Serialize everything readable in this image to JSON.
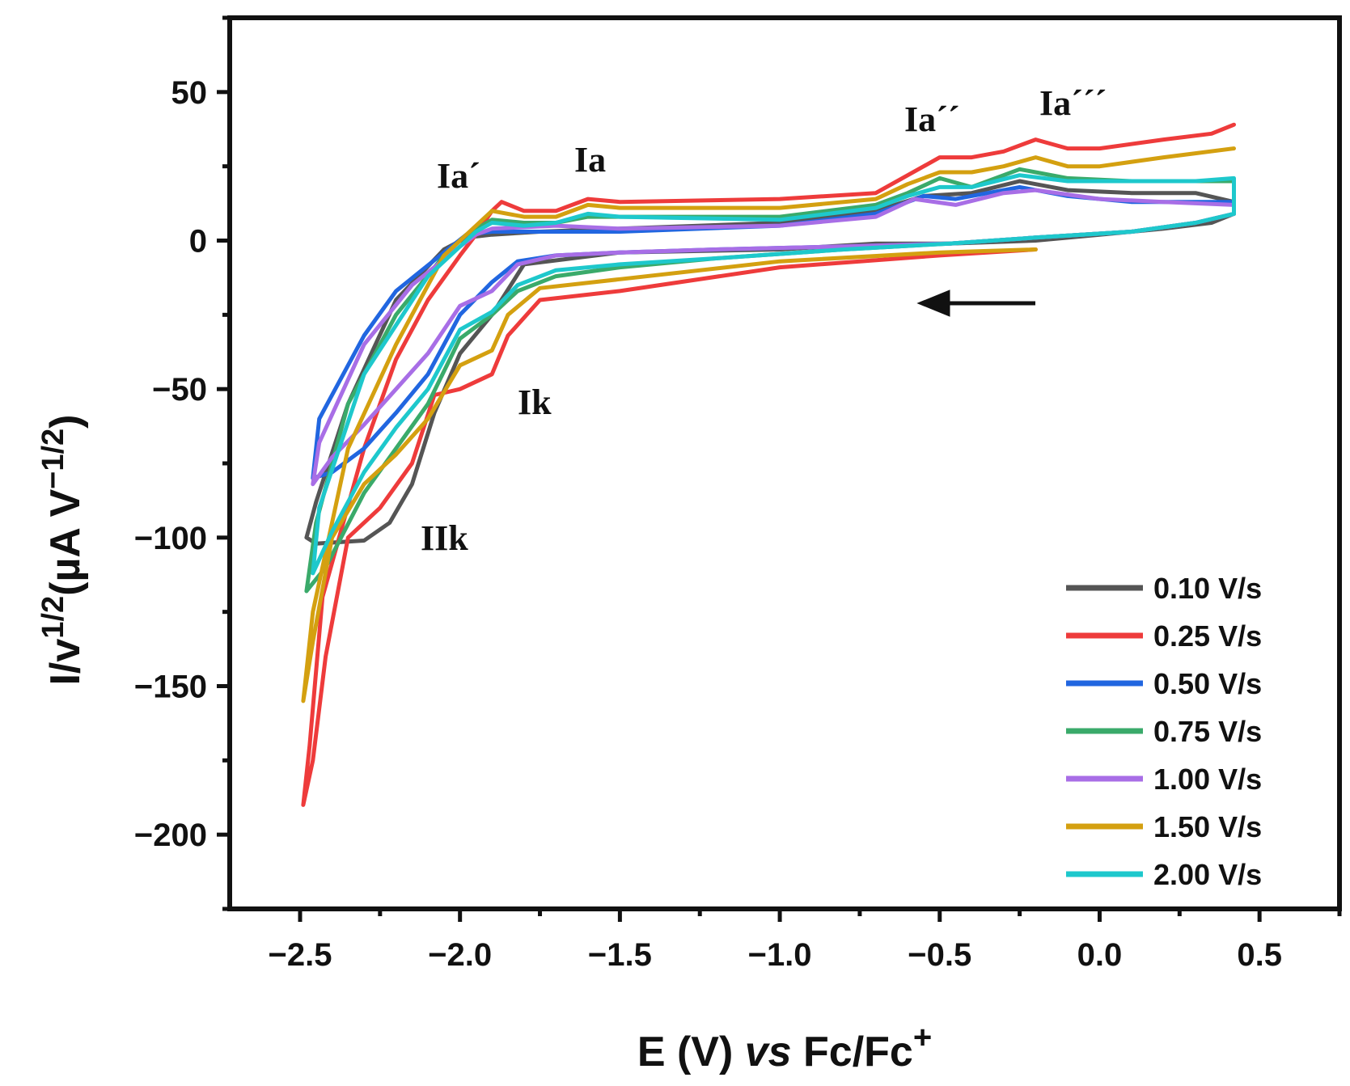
{
  "chart_data": {
    "type": "line",
    "title": "",
    "xlabel": "E (V) vs Fc/Fc+",
    "xlabel_parts": {
      "pre": "E (V) ",
      "italic": "vs",
      "post": " Fc/Fc",
      "sup": "+"
    },
    "ylabel": "I/v^1/2 (µA V^-1/2)",
    "ylabel_parts": {
      "base": "I/v",
      "sup1": "1/2",
      "mid": "(µA V",
      "sup2": "−1/2",
      "end": ")"
    },
    "xlim": [
      -2.72,
      0.75
    ],
    "ylim": [
      -225,
      75
    ],
    "xticks": [
      -2.5,
      -2.0,
      -1.5,
      -1.0,
      -0.5,
      0.0,
      0.5
    ],
    "xtick_labels": [
      "−2.5",
      "−2.0",
      "−1.5",
      "−1.0",
      "−0.5",
      "0.0",
      "0.5"
    ],
    "yticks": [
      50,
      0,
      -50,
      -100,
      -150,
      -200
    ],
    "ytick_labels": [
      "50",
      "0",
      "−50",
      "−100",
      "−150",
      "−200"
    ],
    "grid": false,
    "legend_position": "bottom-right",
    "annotations": [
      {
        "text": "Ia´",
        "x": -2.0,
        "y": 18
      },
      {
        "text": "Ia",
        "x": -1.62,
        "y": 23
      },
      {
        "text": "Ia´´",
        "x": -0.55,
        "y": 37
      },
      {
        "text": "Ia´´´",
        "x": -0.2,
        "y": 42
      },
      {
        "text": "Ik",
        "x": -1.71,
        "y": -58
      },
      {
        "text": "IIk",
        "x": -2.08,
        "y": -103
      }
    ],
    "scan_direction": "negative (arrow pointing left)",
    "series": [
      {
        "name": "0.10 V/s",
        "color": "#555555",
        "points": [
          [
            -0.47,
            -1
          ],
          [
            -0.2,
            0
          ],
          [
            0.0,
            2
          ],
          [
            0.2,
            4
          ],
          [
            0.35,
            6
          ],
          [
            0.42,
            9
          ],
          [
            0.42,
            13
          ],
          [
            0.3,
            16
          ],
          [
            0.1,
            16
          ],
          [
            -0.1,
            17
          ],
          [
            -0.25,
            20
          ],
          [
            -0.4,
            16
          ],
          [
            -0.55,
            15
          ],
          [
            -0.7,
            10
          ],
          [
            -1.0,
            6
          ],
          [
            -1.5,
            4
          ],
          [
            -1.75,
            3
          ],
          [
            -1.9,
            2
          ],
          [
            -1.98,
            1
          ],
          [
            -2.05,
            -3
          ],
          [
            -2.2,
            -20
          ],
          [
            -2.35,
            -55
          ],
          [
            -2.45,
            -88
          ],
          [
            -2.48,
            -100
          ],
          [
            -2.45,
            -102
          ],
          [
            -2.3,
            -101
          ],
          [
            -2.22,
            -95
          ],
          [
            -2.15,
            -82
          ],
          [
            -2.08,
            -58
          ],
          [
            -2.0,
            -38
          ],
          [
            -1.9,
            -25
          ],
          [
            -1.8,
            -8
          ],
          [
            -1.5,
            -4
          ],
          [
            -1.0,
            -3
          ],
          [
            -0.7,
            -1
          ],
          [
            -0.47,
            -1
          ]
        ]
      },
      {
        "name": "0.25 V/s",
        "color": "#ee3b3b",
        "points": [
          [
            -0.2,
            -3
          ],
          [
            -0.5,
            -5
          ],
          [
            -1.0,
            -9
          ],
          [
            -1.5,
            -17
          ],
          [
            -1.75,
            -20
          ],
          [
            -1.85,
            -32
          ],
          [
            -1.9,
            -45
          ],
          [
            -2.0,
            -50
          ],
          [
            -2.08,
            -52
          ],
          [
            -2.15,
            -75
          ],
          [
            -2.25,
            -90
          ],
          [
            -2.35,
            -100
          ],
          [
            -2.42,
            -140
          ],
          [
            -2.46,
            -175
          ],
          [
            -2.49,
            -190
          ],
          [
            -2.47,
            -170
          ],
          [
            -2.43,
            -120
          ],
          [
            -2.3,
            -70
          ],
          [
            -2.2,
            -40
          ],
          [
            -2.1,
            -20
          ],
          [
            -2.0,
            -5
          ],
          [
            -1.95,
            2
          ],
          [
            -1.9,
            10
          ],
          [
            -1.87,
            13
          ],
          [
            -1.8,
            10
          ],
          [
            -1.7,
            10
          ],
          [
            -1.6,
            14
          ],
          [
            -1.5,
            13
          ],
          [
            -1.0,
            14
          ],
          [
            -0.7,
            16
          ],
          [
            -0.6,
            22
          ],
          [
            -0.5,
            28
          ],
          [
            -0.4,
            28
          ],
          [
            -0.3,
            30
          ],
          [
            -0.2,
            34
          ],
          [
            -0.1,
            31
          ],
          [
            0.0,
            31
          ],
          [
            0.2,
            34
          ],
          [
            0.35,
            36
          ],
          [
            0.42,
            39
          ]
        ]
      },
      {
        "name": "0.50 V/s",
        "color": "#2166e0",
        "points": [
          [
            -0.47,
            -1
          ],
          [
            -0.8,
            -2
          ],
          [
            -1.2,
            -3
          ],
          [
            -1.5,
            -4
          ],
          [
            -1.7,
            -5
          ],
          [
            -1.82,
            -7
          ],
          [
            -1.9,
            -14
          ],
          [
            -2.0,
            -25
          ],
          [
            -2.1,
            -45
          ],
          [
            -2.2,
            -58
          ],
          [
            -2.3,
            -70
          ],
          [
            -2.4,
            -78
          ],
          [
            -2.46,
            -80
          ],
          [
            -2.44,
            -60
          ],
          [
            -2.3,
            -32
          ],
          [
            -2.2,
            -17
          ],
          [
            -2.05,
            -4
          ],
          [
            -1.98,
            2
          ],
          [
            -1.9,
            3
          ],
          [
            -1.5,
            3
          ],
          [
            -1.0,
            5
          ],
          [
            -0.7,
            9
          ],
          [
            -0.55,
            15
          ],
          [
            -0.45,
            14
          ],
          [
            -0.25,
            18
          ],
          [
            -0.1,
            15
          ],
          [
            0.1,
            13
          ],
          [
            0.3,
            13
          ],
          [
            0.42,
            13
          ],
          [
            0.42,
            9
          ],
          [
            0.3,
            6
          ],
          [
            0.1,
            3
          ],
          [
            -0.2,
            1
          ],
          [
            -0.47,
            -1
          ]
        ]
      },
      {
        "name": "0.75 V/s",
        "color": "#3aaa6a",
        "points": [
          [
            -0.47,
            -1
          ],
          [
            -0.8,
            -3
          ],
          [
            -1.2,
            -6
          ],
          [
            -1.5,
            -9
          ],
          [
            -1.7,
            -12
          ],
          [
            -1.82,
            -17
          ],
          [
            -1.9,
            -25
          ],
          [
            -2.0,
            -33
          ],
          [
            -2.1,
            -55
          ],
          [
            -2.2,
            -70
          ],
          [
            -2.3,
            -85
          ],
          [
            -2.42,
            -110
          ],
          [
            -2.48,
            -118
          ],
          [
            -2.45,
            -95
          ],
          [
            -2.35,
            -55
          ],
          [
            -2.2,
            -25
          ],
          [
            -2.05,
            -5
          ],
          [
            -1.98,
            2
          ],
          [
            -1.9,
            7
          ],
          [
            -1.8,
            6
          ],
          [
            -1.7,
            6
          ],
          [
            -1.6,
            8
          ],
          [
            -1.5,
            8
          ],
          [
            -1.0,
            8
          ],
          [
            -0.7,
            12
          ],
          [
            -0.6,
            16
          ],
          [
            -0.5,
            21
          ],
          [
            -0.4,
            18
          ],
          [
            -0.25,
            24
          ],
          [
            -0.1,
            21
          ],
          [
            0.1,
            20
          ],
          [
            0.3,
            20
          ],
          [
            0.42,
            20
          ],
          [
            0.42,
            9
          ],
          [
            0.3,
            6
          ],
          [
            0.1,
            3
          ],
          [
            -0.2,
            1
          ],
          [
            -0.47,
            -1
          ]
        ]
      },
      {
        "name": "1.00 V/s",
        "color": "#a86ee6",
        "points": [
          [
            -0.47,
            -1
          ],
          [
            -0.8,
            -2
          ],
          [
            -1.2,
            -3
          ],
          [
            -1.5,
            -4
          ],
          [
            -1.7,
            -5
          ],
          [
            -1.82,
            -8
          ],
          [
            -1.9,
            -17
          ],
          [
            -2.0,
            -22
          ],
          [
            -2.1,
            -38
          ],
          [
            -2.2,
            -50
          ],
          [
            -2.3,
            -62
          ],
          [
            -2.4,
            -73
          ],
          [
            -2.46,
            -82
          ],
          [
            -2.44,
            -68
          ],
          [
            -2.3,
            -35
          ],
          [
            -2.15,
            -15
          ],
          [
            -2.0,
            -2
          ],
          [
            -1.95,
            2
          ],
          [
            -1.9,
            4
          ],
          [
            -1.7,
            5
          ],
          [
            -1.5,
            4
          ],
          [
            -1.0,
            5
          ],
          [
            -0.7,
            8
          ],
          [
            -0.58,
            14
          ],
          [
            -0.45,
            12
          ],
          [
            -0.3,
            16
          ],
          [
            -0.2,
            17
          ],
          [
            0.0,
            14
          ],
          [
            0.2,
            13
          ],
          [
            0.42,
            12
          ],
          [
            0.42,
            9
          ],
          [
            0.3,
            6
          ],
          [
            0.1,
            3
          ],
          [
            -0.2,
            1
          ],
          [
            -0.47,
            -1
          ]
        ]
      },
      {
        "name": "1.50 V/s",
        "color": "#d4a010",
        "points": [
          [
            -0.2,
            -3
          ],
          [
            -0.5,
            -4
          ],
          [
            -1.0,
            -7
          ],
          [
            -1.5,
            -13
          ],
          [
            -1.75,
            -16
          ],
          [
            -1.85,
            -25
          ],
          [
            -1.9,
            -37
          ],
          [
            -2.0,
            -42
          ],
          [
            -2.1,
            -60
          ],
          [
            -2.2,
            -72
          ],
          [
            -2.3,
            -82
          ],
          [
            -2.4,
            -100
          ],
          [
            -2.46,
            -135
          ],
          [
            -2.49,
            -155
          ],
          [
            -2.46,
            -125
          ],
          [
            -2.35,
            -70
          ],
          [
            -2.2,
            -35
          ],
          [
            -2.05,
            -5
          ],
          [
            -1.98,
            2
          ],
          [
            -1.9,
            10
          ],
          [
            -1.8,
            8
          ],
          [
            -1.7,
            8
          ],
          [
            -1.6,
            12
          ],
          [
            -1.5,
            11
          ],
          [
            -1.0,
            11
          ],
          [
            -0.7,
            14
          ],
          [
            -0.6,
            19
          ],
          [
            -0.5,
            23
          ],
          [
            -0.4,
            23
          ],
          [
            -0.3,
            25
          ],
          [
            -0.2,
            28
          ],
          [
            -0.1,
            25
          ],
          [
            0.0,
            25
          ],
          [
            0.2,
            28
          ],
          [
            0.42,
            31
          ]
        ]
      },
      {
        "name": "2.00 V/s",
        "color": "#1ec8cc",
        "points": [
          [
            -0.47,
            -1
          ],
          [
            -0.8,
            -3
          ],
          [
            -1.2,
            -6
          ],
          [
            -1.5,
            -8
          ],
          [
            -1.7,
            -10
          ],
          [
            -1.82,
            -15
          ],
          [
            -1.9,
            -24
          ],
          [
            -2.0,
            -30
          ],
          [
            -2.1,
            -50
          ],
          [
            -2.2,
            -63
          ],
          [
            -2.3,
            -78
          ],
          [
            -2.4,
            -98
          ],
          [
            -2.46,
            -112
          ],
          [
            -2.44,
            -90
          ],
          [
            -2.3,
            -45
          ],
          [
            -2.1,
            -12
          ],
          [
            -2.0,
            -2
          ],
          [
            -1.95,
            3
          ],
          [
            -1.9,
            6
          ],
          [
            -1.8,
            5
          ],
          [
            -1.7,
            6
          ],
          [
            -1.6,
            9
          ],
          [
            -1.5,
            8
          ],
          [
            -1.0,
            7
          ],
          [
            -0.7,
            11
          ],
          [
            -0.6,
            15
          ],
          [
            -0.5,
            18
          ],
          [
            -0.4,
            18
          ],
          [
            -0.25,
            22
          ],
          [
            -0.1,
            20
          ],
          [
            0.1,
            20
          ],
          [
            0.3,
            20
          ],
          [
            0.42,
            21
          ],
          [
            0.42,
            9
          ],
          [
            0.3,
            6
          ],
          [
            0.1,
            3
          ],
          [
            -0.2,
            1
          ],
          [
            -0.47,
            -1
          ]
        ]
      }
    ]
  }
}
